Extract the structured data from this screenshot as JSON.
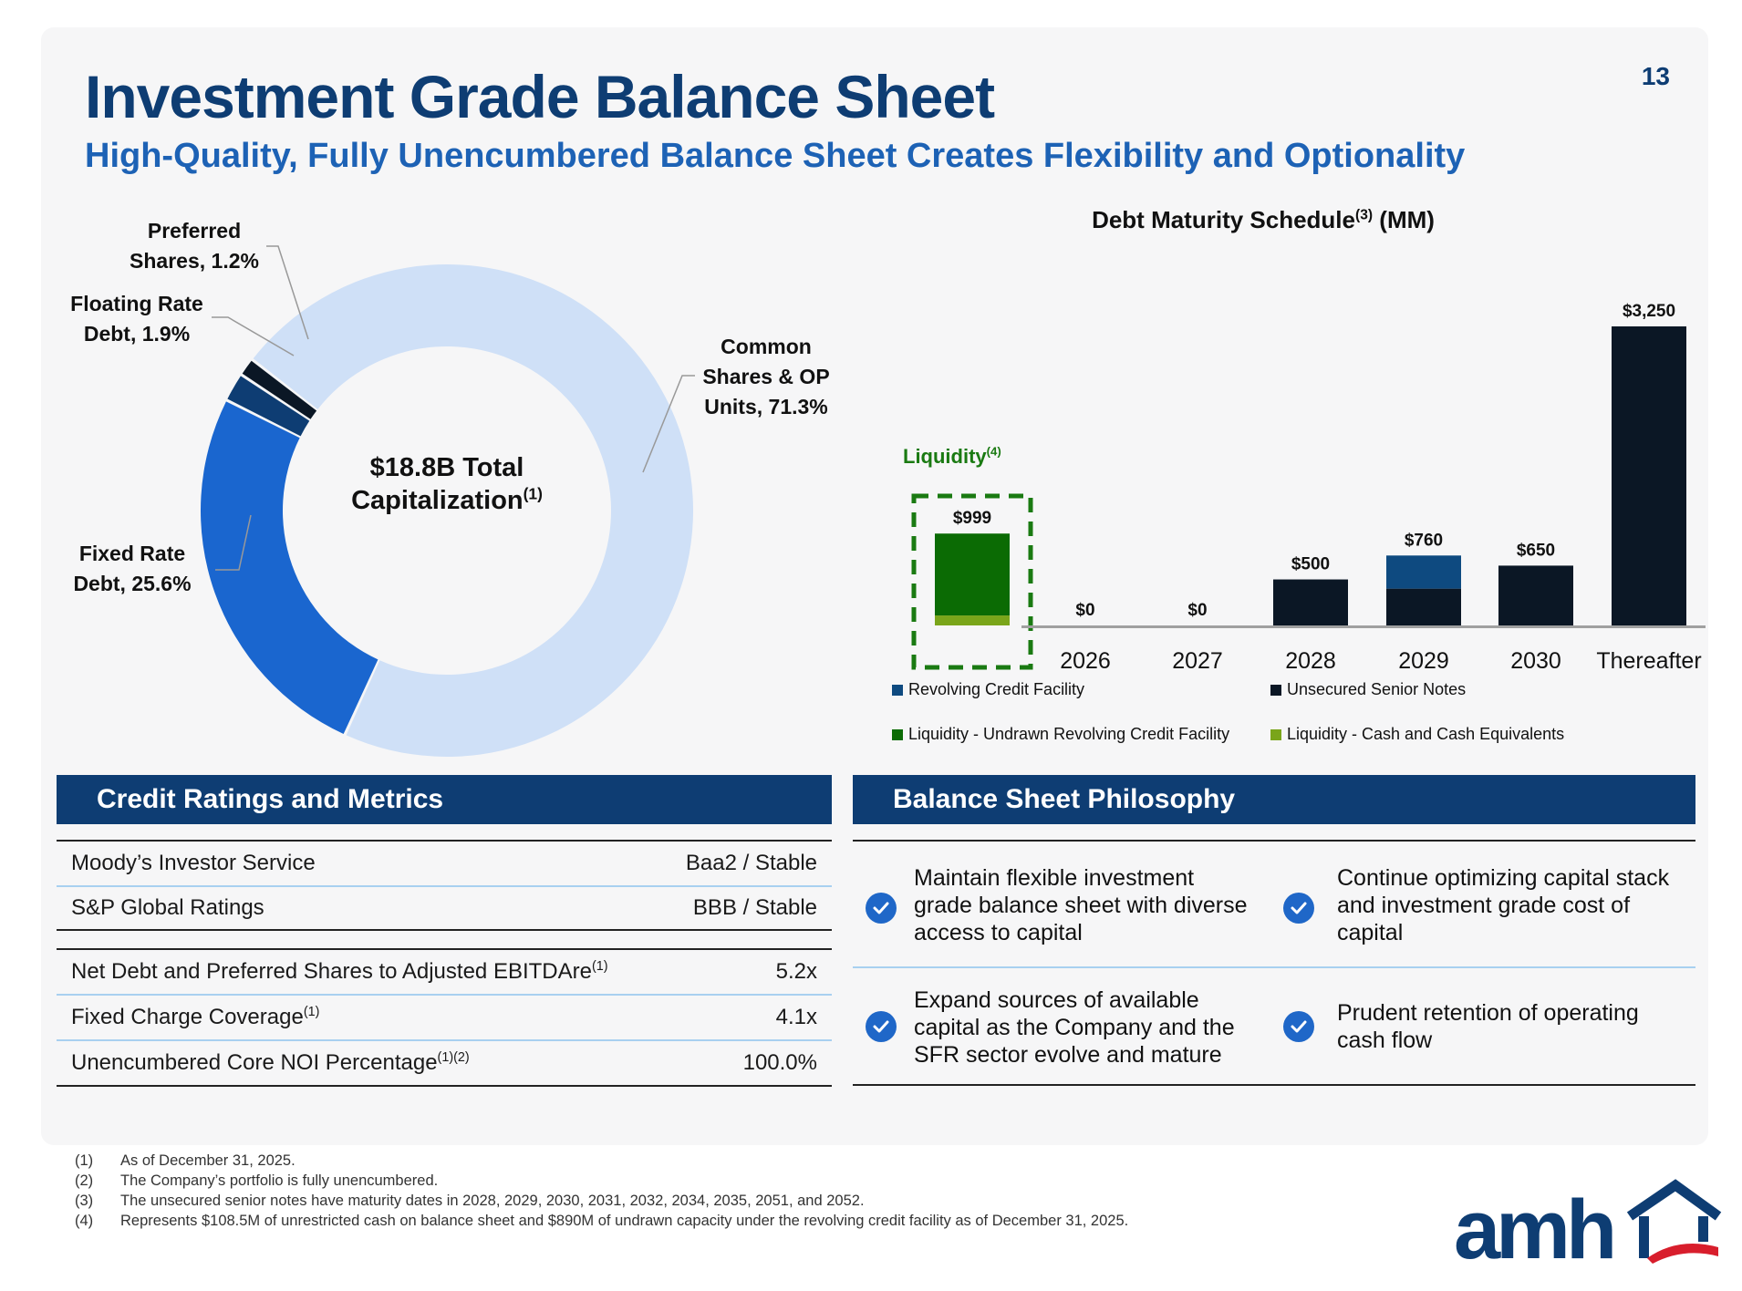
{
  "page_number": "13",
  "title": "Investment Grade Balance Sheet",
  "subtitle": "High-Quality, Fully Unencumbered Balance Sheet Creates Flexibility and Optionality",
  "colors": {
    "navy": "#0e3d73",
    "blue": "#1d62b5",
    "black_bar": "#0b1725",
    "liquidity_green": "#0b6b04",
    "cash_green": "#7aa51a",
    "light_blue": "#cfe0f7"
  },
  "chart_data": [
    {
      "type": "pie",
      "title": "$18.8B Total Capitalization",
      "title_line1": "$18.8B Total",
      "title_line2": "Capitalization",
      "title_footnote": "(1)",
      "slices": [
        {
          "label": "Common Shares & OP Units",
          "label_lines": [
            "Common",
            "Shares & OP",
            "Units, 71.3%"
          ],
          "value": 71.3,
          "color": "#cfe0f7"
        },
        {
          "label": "Fixed Rate Debt",
          "label_lines": [
            "Fixed Rate",
            "Debt, 25.6%"
          ],
          "value": 25.6,
          "color": "#1a66cf"
        },
        {
          "label": "Floating Rate Debt",
          "label_lines": [
            "Floating Rate",
            "Debt, 1.9%"
          ],
          "value": 1.9,
          "color": "#0e3d73"
        },
        {
          "label": "Preferred Shares",
          "label_lines": [
            "Preferred",
            "Shares, 1.2%"
          ],
          "value": 1.2,
          "color": "#0b1725"
        }
      ]
    },
    {
      "type": "bar",
      "title": "Debt Maturity Schedule",
      "title_footnote": "(3)",
      "title_unit": "(MM)",
      "categories": [
        "",
        "2026",
        "2027",
        "2028",
        "2029",
        "2030",
        "Thereafter"
      ],
      "series": [
        {
          "name": "Liquidity - Cash and Cash Equivalents",
          "color": "#7aa51a",
          "values": [
            108.5,
            0,
            0,
            0,
            0,
            0,
            0
          ]
        },
        {
          "name": "Liquidity - Undrawn Revolving Credit Facility",
          "color": "#0b6b04",
          "values": [
            890,
            0,
            0,
            0,
            0,
            0,
            0
          ]
        },
        {
          "name": "Unsecured Senior Notes",
          "color": "#0b1725",
          "values": [
            0,
            0,
            0,
            500,
            400,
            650,
            3250
          ]
        },
        {
          "name": "Revolving Credit Facility",
          "color": "#0e4a80",
          "values": [
            0,
            0,
            0,
            0,
            360,
            0,
            0
          ]
        }
      ],
      "data_labels": [
        "$999",
        "$0",
        "$0",
        "$500",
        "$760",
        "$650",
        "$3,250"
      ],
      "totals": [
        999,
        0,
        0,
        500,
        760,
        650,
        3250
      ],
      "ylim": [
        0,
        3250
      ],
      "liquidity_label": "Liquidity",
      "liquidity_footnote": "(4)",
      "legend": [
        {
          "label": "Revolving Credit Facility",
          "color": "#0e4a80"
        },
        {
          "label": "Unsecured Senior Notes",
          "color": "#0b1725"
        },
        {
          "label": "Liquidity - Undrawn Revolving Credit Facility",
          "color": "#0b6b04"
        },
        {
          "label": "Liquidity - Cash and Cash Equivalents",
          "color": "#7aa51a"
        }
      ]
    }
  ],
  "credit": {
    "header": "Credit Ratings and Metrics",
    "ratings": [
      {
        "label": "Moody’s Investor Service",
        "value": "Baa2 / Stable"
      },
      {
        "label": "S&P Global Ratings",
        "value": "BBB / Stable"
      }
    ],
    "metrics": [
      {
        "label": "Net Debt and Preferred Shares to Adjusted EBITDAre",
        "note": "(1)",
        "value": "5.2x"
      },
      {
        "label": "Fixed Charge Coverage",
        "note": "(1)",
        "value": "4.1x"
      },
      {
        "label": "Unencumbered Core NOI Percentage",
        "note": "(1)(2)",
        "value": "100.0%"
      }
    ]
  },
  "philosophy": {
    "header": "Balance Sheet Philosophy",
    "items": [
      {
        "lines": [
          "Maintain flexible investment",
          "grade balance sheet with diverse",
          "access to capital"
        ]
      },
      {
        "lines": [
          "Continue optimizing capital stack",
          "and investment grade cost of",
          "capital"
        ]
      },
      {
        "lines": [
          "Expand sources of available",
          "capital as the Company and the",
          "SFR sector evolve and mature"
        ]
      },
      {
        "lines": [
          "Prudent retention of operating",
          "cash flow"
        ]
      }
    ]
  },
  "footnotes": [
    {
      "num": "(1)",
      "text": "As of December 31, 2025."
    },
    {
      "num": "(2)",
      "text": "The Company’s portfolio is fully unencumbered."
    },
    {
      "num": "(3)",
      "text": "The unsecured senior notes have maturity dates in 2028, 2029, 2030, 2031, 2032, 2034, 2035, 2051, and 2052."
    },
    {
      "num": "(4)",
      "text": "Represents $108.5M of unrestricted cash on balance sheet and $890M of undrawn capacity under the revolving credit facility as of December 31, 2025."
    }
  ],
  "logo": {
    "text": "amh",
    "icon": "house-roof-icon"
  }
}
